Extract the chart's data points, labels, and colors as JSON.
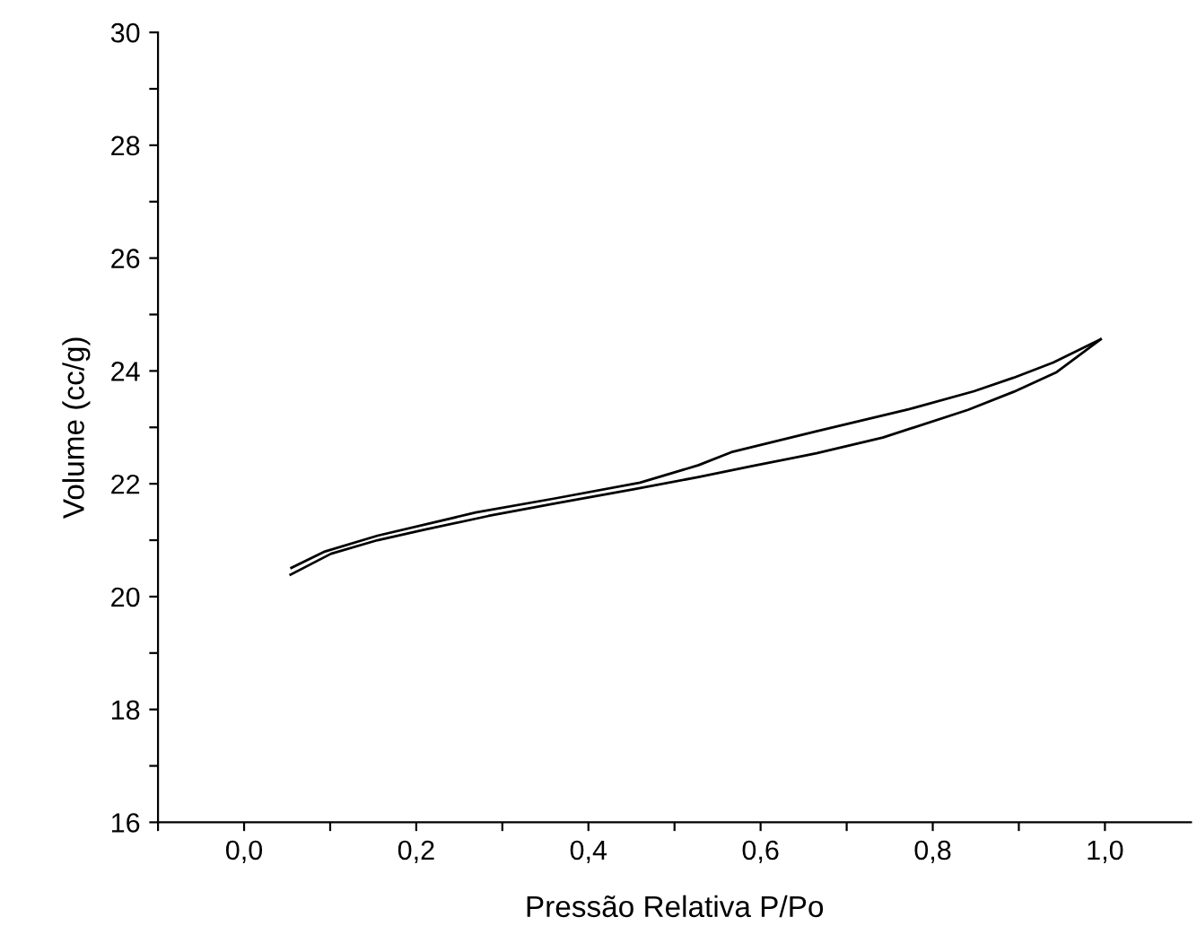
{
  "chart_data": {
    "type": "line",
    "xlabel": "Pressão Relativa P/Po",
    "ylabel": "Volume (cc/g)",
    "xlim": [
      -0.1,
      1.1
    ],
    "ylim": [
      16,
      30
    ],
    "xticks": [
      {
        "value": -0.1,
        "label": null
      },
      {
        "value": 0,
        "label": "0,0"
      },
      {
        "value": 0.1,
        "label": null
      },
      {
        "value": 0.2,
        "label": "0,2"
      },
      {
        "value": 0.3,
        "label": null
      },
      {
        "value": 0.4,
        "label": "0,4"
      },
      {
        "value": 0.5,
        "label": null
      },
      {
        "value": 0.6,
        "label": "0,6"
      },
      {
        "value": 0.7,
        "label": null
      },
      {
        "value": 0.8,
        "label": "0,8"
      },
      {
        "value": 0.9,
        "label": null
      },
      {
        "value": 1.0,
        "label": "1,0"
      }
    ],
    "yticks": [
      16,
      {
        "value": 17,
        "label": null
      },
      18,
      {
        "value": 19,
        "label": null
      },
      20,
      {
        "value": 21,
        "label": null
      },
      22,
      {
        "value": 23,
        "label": null
      },
      24,
      {
        "value": 25,
        "label": null
      },
      26,
      {
        "value": 27,
        "label": null
      },
      28,
      {
        "value": 29,
        "label": null
      },
      30
    ],
    "grid": false,
    "marker": "none",
    "line_style": "solid",
    "series": [
      {
        "color": "#000000",
        "x": [
          0.054,
          0.101,
          0.155,
          0.208,
          0.284,
          0.361,
          0.452,
          0.528,
          0.589,
          0.665,
          0.742,
          0.841,
          0.894,
          0.944,
          0.995
        ],
        "values": [
          20.39,
          20.76,
          21.0,
          21.18,
          21.43,
          21.65,
          21.9,
          22.12,
          22.31,
          22.54,
          22.82,
          23.31,
          23.63,
          23.98,
          24.56
        ]
      },
      {
        "color": "#000000",
        "x": [
          0.055,
          0.094,
          0.155,
          0.269,
          0.361,
          0.46,
          0.528,
          0.566,
          0.665,
          0.772,
          0.848,
          0.894,
          0.94,
          0.995
        ],
        "values": [
          20.51,
          20.8,
          21.08,
          21.49,
          21.74,
          22.02,
          22.33,
          22.56,
          22.93,
          23.32,
          23.64,
          23.88,
          24.15,
          24.56
        ]
      }
    ]
  }
}
